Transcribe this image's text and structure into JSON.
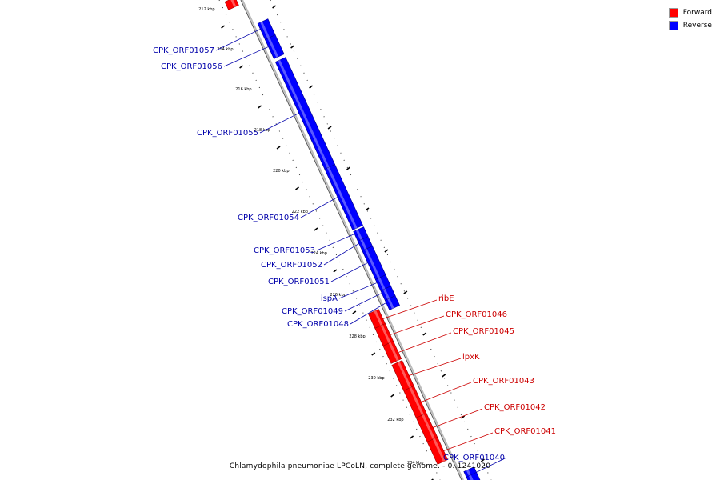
{
  "colors": {
    "forward": "#ff0000",
    "reverse": "#0000ff",
    "forward_label": "#cc0000",
    "reverse_label": "#0000aa",
    "backbone": "#999999"
  },
  "legend": {
    "forward_label": "Forward",
    "reverse_label": "Reverse"
  },
  "caption": "Chlamydophila pneumoniae LPCoLN, complete genome. - 0..1241020",
  "ticks": [
    "212 kbp",
    "214 kbp",
    "216 kbp",
    "218 kbp",
    "220 kbp",
    "222 kbp",
    "224 kbp",
    "226 kbp",
    "228 kbp",
    "230 kbp",
    "232 kbp",
    "234 kbp"
  ],
  "genes": [
    {
      "name": "",
      "strand": "forward"
    },
    {
      "name": "CPK_ORF01057",
      "strand": "reverse"
    },
    {
      "name": "CPK_ORF01056",
      "strand": "reverse"
    },
    {
      "name": "CPK_ORF01055",
      "strand": "reverse"
    },
    {
      "name": "CPK_ORF01054",
      "strand": "reverse"
    },
    {
      "name": "CPK_ORF01053",
      "strand": "reverse"
    },
    {
      "name": "CPK_ORF01052",
      "strand": "reverse"
    },
    {
      "name": "CPK_ORF01051",
      "strand": "reverse"
    },
    {
      "name": "ispA",
      "strand": "reverse"
    },
    {
      "name": "CPK_ORF01049",
      "strand": "reverse"
    },
    {
      "name": "CPK_ORF01048",
      "strand": "reverse"
    },
    {
      "name": "ribE",
      "strand": "forward"
    },
    {
      "name": "CPK_ORF01046",
      "strand": "forward"
    },
    {
      "name": "CPK_ORF01045",
      "strand": "forward"
    },
    {
      "name": "lpxK",
      "strand": "forward"
    },
    {
      "name": "CPK_ORF01043",
      "strand": "forward"
    },
    {
      "name": "CPK_ORF01042",
      "strand": "forward"
    },
    {
      "name": "CPK_ORF01041",
      "strand": "forward"
    },
    {
      "name": "CPK_ORF01040",
      "strand": "reverse"
    }
  ]
}
